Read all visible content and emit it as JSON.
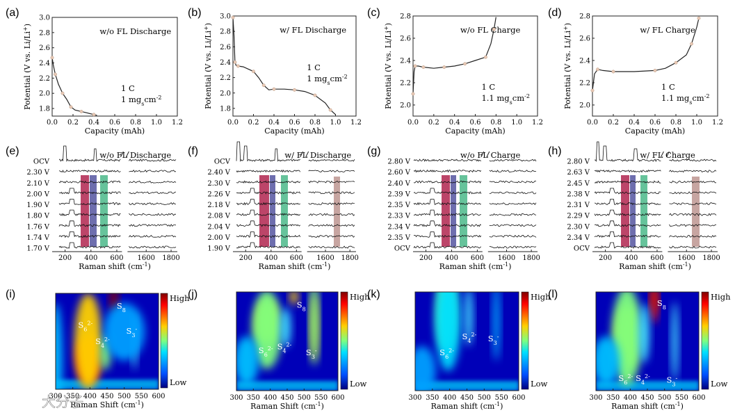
{
  "panels": [
    {
      "label": "(a)",
      "title": "w/o FL Discharge",
      "rate": "1 C",
      "loading": "1 mg",
      "loading_sub": "s",
      "loading_unit": "cm",
      "loading_exp": "-2"
    },
    {
      "label": "(b)",
      "title": "w/ FL Discharge",
      "rate": "1 C",
      "loading": "1 mg",
      "loading_sub": "s",
      "loading_unit": "cm",
      "loading_exp": "-2"
    },
    {
      "label": "(c)",
      "title": "w/o FL Charge",
      "rate": "1 C",
      "loading": "1.1 mg",
      "loading_sub": "s",
      "loading_unit": "cm",
      "loading_exp": "-2"
    },
    {
      "label": "(d)",
      "title": "w/ FL Charge",
      "rate": "1 C",
      "loading": "1.1 mg",
      "loading_sub": "s",
      "loading_unit": "cm",
      "loading_exp": "-2"
    },
    {
      "label": "(e)",
      "title": "w/o FL Discharge"
    },
    {
      "label": "(f)",
      "title": "w/ FL Discharge"
    },
    {
      "label": "(g)",
      "title": "w/o FL Charge"
    },
    {
      "label": "(h)",
      "title": "w/ FL Charge"
    },
    {
      "label": "(i)"
    },
    {
      "label": "(j)"
    },
    {
      "label": "(k)"
    },
    {
      "label": "(l)"
    }
  ],
  "axes": {
    "capacity_label": "Capacity (mAh)",
    "potential_label": "Potential (V vs. Li/Li",
    "potential_sup": "+",
    "potential_close": ")",
    "raman_label": "Raman shift (cm",
    "raman_sup": "-1",
    "raman_close": ")",
    "raman_label_i": "Raman Shift (cm",
    "raman_label_j": "Raman Shift (cm",
    "raman_label_kl": "Raman shift (cm"
  },
  "colorbar": {
    "high": "High",
    "low": "Low"
  },
  "species": {
    "s8": "S",
    "s8_sub": "8",
    "s6": "S",
    "s6_sub": "6",
    "s6_sup": "2-",
    "s4": "S",
    "s4_sub": "4",
    "s4_sup": "2-",
    "s3": "S",
    "s3_sub": "3",
    "s3_sup": "-"
  },
  "watermark": "大分子",
  "chart_data": [
    {
      "type": "line",
      "panel": "a",
      "xlabel": "Capacity (mAh)",
      "ylabel": "Potential (V vs. Li/Li+)",
      "xlim": [
        0.0,
        1.2
      ],
      "ylim": [
        1.7,
        3.0
      ],
      "xticks": [
        0.0,
        0.2,
        0.4,
        0.6,
        0.8,
        1.0,
        1.2
      ],
      "yticks": [
        1.8,
        2.0,
        2.2,
        2.4,
        2.6,
        2.8,
        3.0
      ],
      "x": [
        0.0,
        0.01,
        0.03,
        0.06,
        0.1,
        0.14,
        0.18,
        0.22,
        0.28,
        0.34,
        0.4,
        0.43
      ],
      "y": [
        2.47,
        2.38,
        2.25,
        2.12,
        2.0,
        1.92,
        1.82,
        1.78,
        1.76,
        1.74,
        1.72,
        1.71
      ]
    },
    {
      "type": "line",
      "panel": "b",
      "xlabel": "Capacity (mAh)",
      "ylabel": "Potential (V vs. Li/Li+)",
      "xlim": [
        0.0,
        1.2
      ],
      "ylim": [
        1.7,
        3.0
      ],
      "xticks": [
        0.0,
        0.2,
        0.4,
        0.6,
        0.8,
        1.0,
        1.2
      ],
      "yticks": [
        1.8,
        2.0,
        2.2,
        2.4,
        2.6,
        2.8,
        3.0
      ],
      "x": [
        0.0,
        0.01,
        0.02,
        0.03,
        0.05,
        0.1,
        0.2,
        0.25,
        0.3,
        0.35,
        0.4,
        0.5,
        0.6,
        0.7,
        0.8,
        0.9,
        0.95,
        1.0
      ],
      "y": [
        2.98,
        2.75,
        2.4,
        2.36,
        2.35,
        2.34,
        2.28,
        2.2,
        2.1,
        2.04,
        2.05,
        2.05,
        2.04,
        2.02,
        1.97,
        1.87,
        1.78,
        1.72
      ]
    },
    {
      "type": "line",
      "panel": "c",
      "xlabel": "Capacity (mAh)",
      "ylabel": "Potential (V vs. Li/Li+)",
      "xlim": [
        0.0,
        1.2
      ],
      "ylim": [
        1.9,
        2.8
      ],
      "xticks": [
        0.0,
        0.2,
        0.4,
        0.6,
        0.8,
        1.0,
        1.2
      ],
      "yticks": [
        2.0,
        2.2,
        2.4,
        2.6,
        2.8
      ],
      "x": [
        0.0,
        0.01,
        0.02,
        0.05,
        0.1,
        0.2,
        0.3,
        0.4,
        0.5,
        0.6,
        0.7,
        0.75,
        0.78,
        0.8
      ],
      "y": [
        2.1,
        2.3,
        2.35,
        2.35,
        2.34,
        2.33,
        2.34,
        2.35,
        2.37,
        2.4,
        2.43,
        2.55,
        2.68,
        2.79
      ]
    },
    {
      "type": "line",
      "panel": "d",
      "xlabel": "Capacity (mAh)",
      "ylabel": "Potential (V vs. Li/Li+)",
      "xlim": [
        0.0,
        1.2
      ],
      "ylim": [
        1.9,
        2.8
      ],
      "xticks": [
        0.0,
        0.2,
        0.4,
        0.6,
        0.8,
        1.0,
        1.2
      ],
      "yticks": [
        2.0,
        2.2,
        2.4,
        2.6,
        2.8
      ],
      "x": [
        0.0,
        0.02,
        0.05,
        0.1,
        0.2,
        0.4,
        0.6,
        0.7,
        0.8,
        0.9,
        0.95,
        1.0,
        1.02
      ],
      "y": [
        2.13,
        2.28,
        2.32,
        2.31,
        2.3,
        2.3,
        2.31,
        2.33,
        2.38,
        2.45,
        2.55,
        2.7,
        2.78
      ]
    },
    {
      "type": "line",
      "panel": "e",
      "title": "w/o FL Discharge",
      "xlabel": "Raman shift (cm-1)",
      "xticks": [
        200,
        400,
        600,
        1600,
        1800
      ],
      "traces": [
        "OCV",
        "2.30 V",
        "2.10 V",
        "2.00 V",
        "1.90 V",
        "1.80 V",
        "1.76 V",
        "1.74 V",
        "1.70 V"
      ]
    },
    {
      "type": "line",
      "panel": "f",
      "title": "w/ FL Discharge",
      "xlabel": "Raman shift (cm-1)",
      "xticks": [
        200,
        400,
        600,
        1600,
        1800
      ],
      "traces": [
        "OCV",
        "2.40 V",
        "2.30 V",
        "2.26 V",
        "2.18 V",
        "2.08 V",
        "2.04 V",
        "2.00 V",
        "1.90 V"
      ]
    },
    {
      "type": "line",
      "panel": "g",
      "title": "w/o FL Charge",
      "xlabel": "Raman shift (cm-1)",
      "xticks": [
        200,
        400,
        600,
        1600,
        1800
      ],
      "traces": [
        "2.80 V",
        "2.60 V",
        "2.40 V",
        "2.39 V",
        "2.35 V",
        "2.33 V",
        "2.34 V",
        "2.35 V",
        "OCV"
      ]
    },
    {
      "type": "line",
      "panel": "h",
      "title": "w/ FL Charge",
      "xlabel": "Raman shift (cm-1)",
      "xticks": [
        200,
        400,
        600,
        1600,
        1800
      ],
      "traces": [
        "2.80 V",
        "2.63 V",
        "2.45 V",
        "2.38 V",
        "2.31 V",
        "2.29 V",
        "2.30 V",
        "2.34 V",
        "OCV"
      ]
    },
    {
      "type": "heatmap",
      "panel": "i",
      "xlabel": "Raman Shift (cm-1)",
      "xticks": [
        300,
        350,
        400,
        450,
        500,
        550,
        600
      ],
      "colorbar": [
        "High",
        "Low"
      ],
      "labels": [
        {
          "text": "S8",
          "x": 470
        },
        {
          "text": "S6 2-",
          "x": 390
        },
        {
          "text": "S4 2-",
          "x": 440
        },
        {
          "text": "S3 -",
          "x": 530
        }
      ]
    },
    {
      "type": "heatmap",
      "panel": "j",
      "xlabel": "Raman Shift (cm-1)",
      "xticks": [
        300,
        350,
        400,
        450,
        500,
        550,
        600
      ],
      "colorbar": [
        "High",
        "Low"
      ],
      "labels": [
        {
          "text": "S8",
          "x": 470
        },
        {
          "text": "S6 2-",
          "x": 390
        },
        {
          "text": "S4 2-",
          "x": 445
        },
        {
          "text": "S3 -",
          "x": 530
        }
      ]
    },
    {
      "type": "heatmap",
      "panel": "k",
      "xlabel": "Raman shift (cm-1)",
      "xticks": [
        300,
        350,
        400,
        450,
        500,
        550,
        600
      ],
      "colorbar": [
        "High",
        "Low"
      ],
      "labels": [
        {
          "text": "S6 2-",
          "x": 395
        },
        {
          "text": "S4 2-",
          "x": 460
        },
        {
          "text": "S3 -",
          "x": 535
        }
      ]
    },
    {
      "type": "heatmap",
      "panel": "l",
      "xlabel": "Raman shift (cm-1)",
      "xticks": [
        300,
        350,
        400,
        450,
        500,
        550,
        600
      ],
      "colorbar": [
        "High",
        "Low"
      ],
      "labels": [
        {
          "text": "S8",
          "x": 470
        },
        {
          "text": "S6 2-",
          "x": 390
        },
        {
          "text": "S4 2-",
          "x": 440
        },
        {
          "text": "S3 -",
          "x": 530
        }
      ]
    }
  ]
}
